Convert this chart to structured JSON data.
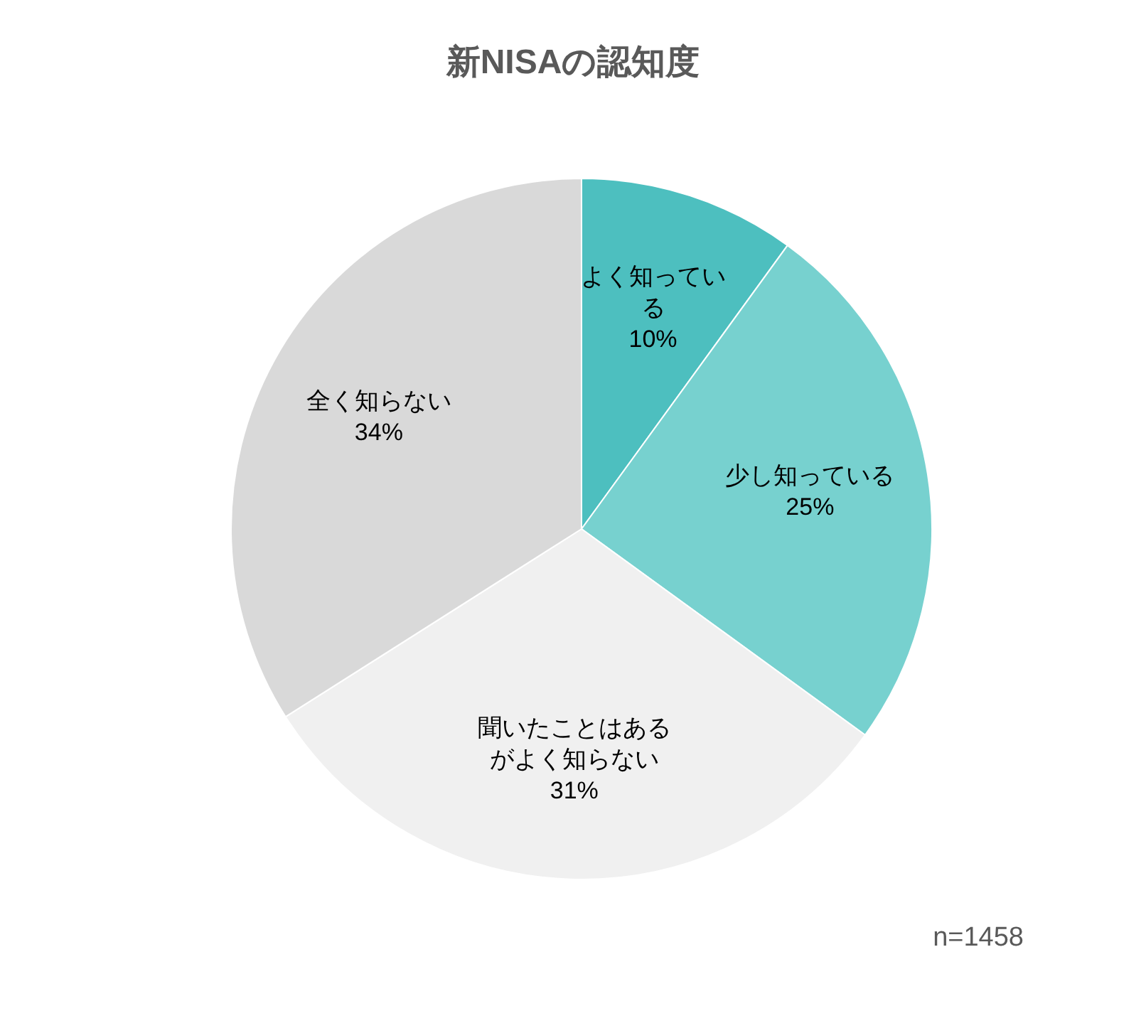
{
  "chart_data": {
    "type": "pie",
    "title": "新NISAの認知度",
    "categories": [
      "よく知っている",
      "少し知っている",
      "聞いたことはあるがよく知らない",
      "全く知らない"
    ],
    "values": [
      10,
      25,
      31,
      34
    ],
    "colors": [
      "#4dbfbf",
      "#77d1cf",
      "#f0f0f0",
      "#d9d9d9"
    ],
    "value_labels": [
      "10%",
      "25%",
      "31%",
      "34%"
    ],
    "legend": false,
    "annotations": [
      "n=1458"
    ]
  }
}
